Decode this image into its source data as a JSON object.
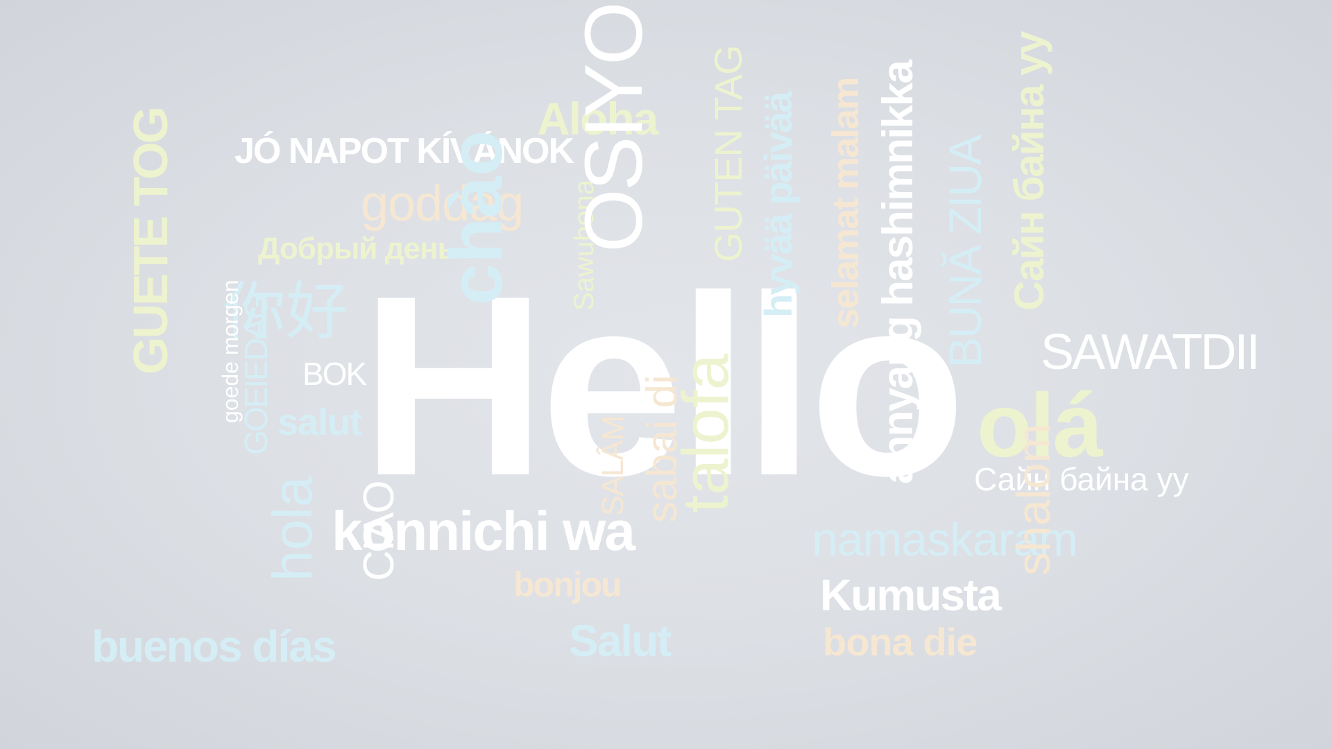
{
  "colors": {
    "background": "#dde0e5",
    "white": "#ffffff",
    "light_blue": "#d5eef6",
    "light_green": "#edf3cf",
    "light_peach": "#f6e7d3"
  },
  "words": [
    {
      "id": "hello",
      "text": "Hello",
      "color": "#ffffff"
    },
    {
      "id": "jo-napot-kivanok",
      "text": "JÓ NAPOT KÍVÁNOK",
      "color": "#ffffff"
    },
    {
      "id": "aloha",
      "text": "Aloha",
      "color": "#edf3cf"
    },
    {
      "id": "goddag",
      "text": "goddag",
      "color": "#f6e7d3"
    },
    {
      "id": "dobryi-den",
      "text": "Добрый день",
      "color": "#edf3cf"
    },
    {
      "id": "nihao",
      "text": "你好",
      "color": "#d5eef6"
    },
    {
      "id": "bok",
      "text": "BOK",
      "color": "#ffffff"
    },
    {
      "id": "salut-1",
      "text": "salut",
      "color": "#d5eef6"
    },
    {
      "id": "guete-tog",
      "text": "GUETE TOG",
      "color": "#edf3cf"
    },
    {
      "id": "goede-morgen",
      "text": "goede morgen",
      "color": "#ffffff"
    },
    {
      "id": "goeiedag",
      "text": "GOEIEDAG",
      "color": "#d5eef6"
    },
    {
      "id": "konnichi-wa",
      "text": "konnichi wa",
      "color": "#ffffff"
    },
    {
      "id": "buenos-dias",
      "text": "buenos días",
      "color": "#d5eef6"
    },
    {
      "id": "hola",
      "text": "hola",
      "color": "#d5eef6"
    },
    {
      "id": "ciao",
      "text": "CIAO",
      "color": "#ffffff"
    },
    {
      "id": "bonjou",
      "text": "bonjou",
      "color": "#f6e7d3"
    },
    {
      "id": "salam",
      "text": "SALÂM",
      "color": "#f6e7d3"
    },
    {
      "id": "salut-2",
      "text": "Salut",
      "color": "#d5eef6"
    },
    {
      "id": "sabai-di",
      "text": "sabai di",
      "color": "#f6e7d3"
    },
    {
      "id": "talofa",
      "text": "talofa",
      "color": "#edf3cf"
    },
    {
      "id": "chao",
      "text": "chào",
      "color": "#d5eef6"
    },
    {
      "id": "sawubona",
      "text": "Sawubona",
      "color": "#edf3cf"
    },
    {
      "id": "osiyo",
      "text": "OSIYO",
      "color": "#ffffff"
    },
    {
      "id": "guten-tag",
      "text": "GUTEN TAG",
      "color": "#edf3cf"
    },
    {
      "id": "hyvaa-paivaa",
      "text": "hyvää päivää",
      "color": "#d5eef6"
    },
    {
      "id": "selamat-malam",
      "text": "selamat malam",
      "color": "#f6e7d3"
    },
    {
      "id": "annyang-hashimnikka",
      "text": "annyang hashimnikka",
      "color": "#ffffff"
    },
    {
      "id": "buna-ziua",
      "text": "BUNĂ ZIUA",
      "color": "#d5eef6"
    },
    {
      "id": "sain-baina-uu-1",
      "text": "Сайн байна уу",
      "color": "#edf3cf"
    },
    {
      "id": "sawatdii",
      "text": "SAWATDII",
      "color": "#ffffff"
    },
    {
      "id": "ola",
      "text": "olá",
      "color": "#edf3cf"
    },
    {
      "id": "sain-baina-uu-2",
      "text": "Сайн байна уу",
      "color": "#ffffff"
    },
    {
      "id": "namaskaram",
      "text": "namaskaram",
      "color": "#d5eef6"
    },
    {
      "id": "kumusta",
      "text": "Kumusta",
      "color": "#ffffff"
    },
    {
      "id": "bona-die",
      "text": "bona die",
      "color": "#f6e7d3"
    },
    {
      "id": "shalom",
      "text": "shalom",
      "color": "#f6e7d3"
    }
  ]
}
